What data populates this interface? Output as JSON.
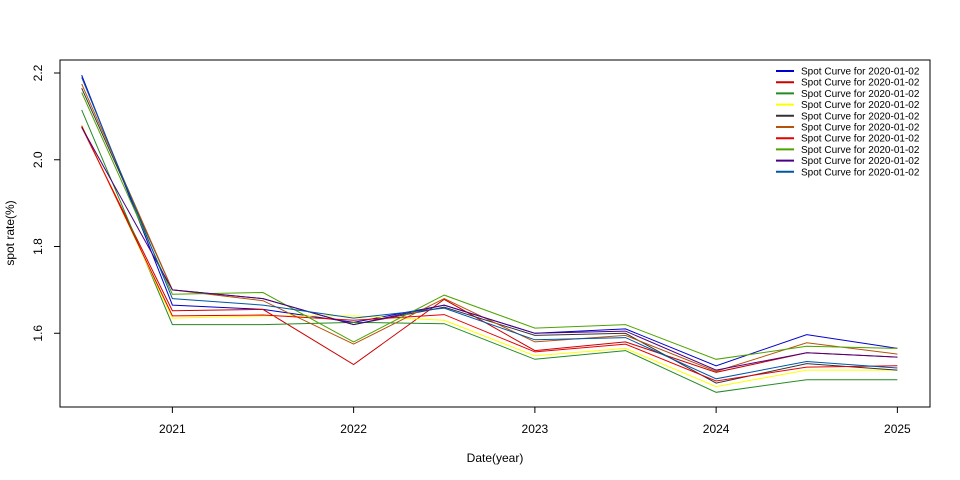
{
  "chart_data": {
    "type": "line",
    "xlabel": "Date(year)",
    "ylabel": "spot rate(%)",
    "xlim": [
      2020.38,
      2025.18
    ],
    "ylim": [
      1.43,
      2.23
    ],
    "x_ticks": [
      2021,
      2022,
      2023,
      2024,
      2025
    ],
    "x_tick_labels": [
      "2021",
      "2022",
      "2023",
      "2024",
      "2025"
    ],
    "y_ticks": [
      1.6,
      1.8,
      2.0,
      2.2
    ],
    "y_tick_labels": [
      "1.6",
      "1.8",
      "2.0",
      "2.2"
    ],
    "legend_position": "top-right",
    "grid": false,
    "x": [
      2020.5,
      2021.0,
      2021.5,
      2022.0,
      2022.5,
      2023.0,
      2023.5,
      2024.0,
      2024.5,
      2025.0
    ],
    "series": [
      {
        "name": "Spot Curve for 2020-01-02",
        "color": "#0000CD",
        "values": [
          2.195,
          1.665,
          1.655,
          1.625,
          1.665,
          1.6,
          1.61,
          1.525,
          1.597,
          1.565
        ]
      },
      {
        "name": "Spot Curve for 2020-01-02",
        "color": "#CC0000",
        "values": [
          2.075,
          1.652,
          1.655,
          1.528,
          1.678,
          1.56,
          1.58,
          1.51,
          1.555,
          1.545
        ]
      },
      {
        "name": "Spot Curve for 2020-01-02",
        "color": "#228B22",
        "values": [
          2.115,
          1.62,
          1.62,
          1.625,
          1.622,
          1.54,
          1.56,
          1.464,
          1.493,
          1.493
        ]
      },
      {
        "name": "Spot Curve for 2020-01-02",
        "color": "#FFFF00",
        "values": [
          2.08,
          1.635,
          1.64,
          1.64,
          1.63,
          1.548,
          1.565,
          1.477,
          1.515,
          1.515
        ]
      },
      {
        "name": "Spot Curve for 2020-01-02",
        "color": "#333333",
        "values": [
          2.165,
          1.7,
          1.68,
          1.62,
          1.66,
          1.595,
          1.6,
          1.485,
          1.53,
          1.515
        ]
      },
      {
        "name": "Spot Curve for 2020-01-02",
        "color": "#B8520A",
        "values": [
          2.175,
          1.7,
          1.675,
          1.575,
          1.68,
          1.58,
          1.595,
          1.512,
          1.578,
          1.552
        ]
      },
      {
        "name": "Spot Curve for 2020-01-02",
        "color": "#E60000",
        "values": [
          2.078,
          1.64,
          1.642,
          1.63,
          1.643,
          1.557,
          1.575,
          1.49,
          1.522,
          1.525
        ]
      },
      {
        "name": "Spot Curve for 2020-01-02",
        "color": "#4CA300",
        "values": [
          2.155,
          1.69,
          1.694,
          1.58,
          1.688,
          1.612,
          1.62,
          1.54,
          1.57,
          1.565
        ]
      },
      {
        "name": "Spot Curve for 2020-01-02",
        "color": "#4B0082",
        "values": [
          2.075,
          1.7,
          1.68,
          1.62,
          1.665,
          1.6,
          1.605,
          1.515,
          1.555,
          1.545
        ]
      },
      {
        "name": "Spot Curve for 2020-01-02",
        "color": "#0055AA",
        "values": [
          2.19,
          1.68,
          1.665,
          1.635,
          1.658,
          1.585,
          1.59,
          1.495,
          1.535,
          1.52
        ]
      }
    ]
  }
}
